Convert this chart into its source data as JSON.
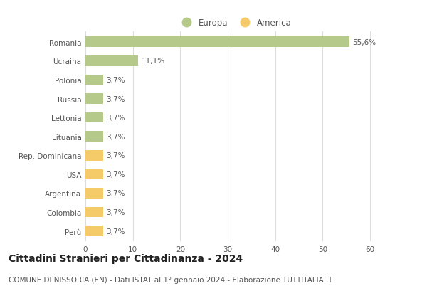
{
  "categories": [
    "Romania",
    "Ucraina",
    "Polonia",
    "Russia",
    "Lettonia",
    "Lituania",
    "Rep. Dominicana",
    "USA",
    "Argentina",
    "Colombia",
    "Perù"
  ],
  "values": [
    55.6,
    11.1,
    3.7,
    3.7,
    3.7,
    3.7,
    3.7,
    3.7,
    3.7,
    3.7,
    3.7
  ],
  "labels": [
    "55,6%",
    "11,1%",
    "3,7%",
    "3,7%",
    "3,7%",
    "3,7%",
    "3,7%",
    "3,7%",
    "3,7%",
    "3,7%",
    "3,7%"
  ],
  "colors": [
    "#b5c98a",
    "#b5c98a",
    "#b5c98a",
    "#b5c98a",
    "#b5c98a",
    "#b5c98a",
    "#f5cb6a",
    "#f5cb6a",
    "#f5cb6a",
    "#f5cb6a",
    "#f5cb6a"
  ],
  "legend_europa_color": "#b5c98a",
  "legend_america_color": "#f5cb6a",
  "xlim": [
    0,
    63
  ],
  "xticks": [
    0,
    10,
    20,
    30,
    40,
    50,
    60
  ],
  "title": "Cittadini Stranieri per Cittadinanza - 2024",
  "subtitle": "COMUNE DI NISSORIA (EN) - Dati ISTAT al 1° gennaio 2024 - Elaborazione TUTTITALIA.IT",
  "bg_color": "#ffffff",
  "grid_color": "#dddddd",
  "bar_height": 0.55,
  "title_fontsize": 10,
  "subtitle_fontsize": 7.5,
  "label_fontsize": 7.5,
  "tick_fontsize": 7.5,
  "legend_fontsize": 8.5
}
